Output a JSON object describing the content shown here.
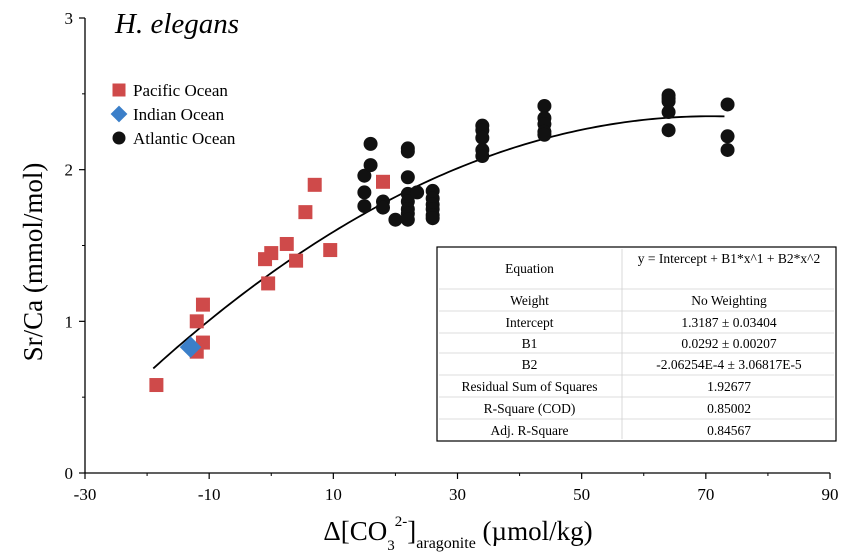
{
  "chart_data": {
    "type": "scatter",
    "title": "H. elegans",
    "xlabel": {
      "prefix": "Δ[CO",
      "sub": "3",
      "sup": "2-",
      "close": "]",
      "sub2": "aragonite",
      "unit": " (µmol/kg)"
    },
    "ylabel": "Sr/Ca (mmol/mol)",
    "xlim": [
      -30,
      90
    ],
    "ylim": [
      0,
      3
    ],
    "x_ticks": [
      "-30",
      "-10",
      "10",
      "30",
      "50",
      "70",
      "90"
    ],
    "y_ticks": [
      "0",
      "1",
      "2",
      "3"
    ],
    "grid": false,
    "legend_position": "top-left",
    "series": [
      {
        "name": "Pacific Ocean",
        "marker": "square",
        "color": "#cf4a4a",
        "points": [
          [
            -18.5,
            0.58
          ],
          [
            -12,
            1.0
          ],
          [
            -12,
            0.8
          ],
          [
            -11,
            1.11
          ],
          [
            -11,
            0.86
          ],
          [
            -1,
            1.41
          ],
          [
            -0.5,
            1.25
          ],
          [
            0,
            1.45
          ],
          [
            2.5,
            1.51
          ],
          [
            4,
            1.4
          ],
          [
            5.5,
            1.72
          ],
          [
            7,
            1.9
          ],
          [
            9.5,
            1.47
          ],
          [
            18,
            1.92
          ]
        ]
      },
      {
        "name": "Indian Ocean",
        "marker": "diamond",
        "color": "#3b7fc9",
        "points": [
          [
            -13,
            0.83
          ]
        ]
      },
      {
        "name": "Atlantic Ocean",
        "marker": "circle",
        "color": "#111111",
        "points": [
          [
            15,
            1.96
          ],
          [
            15,
            1.85
          ],
          [
            15,
            1.76
          ],
          [
            16,
            2.17
          ],
          [
            16,
            2.03
          ],
          [
            18,
            1.79
          ],
          [
            18,
            1.75
          ],
          [
            20,
            1.67
          ],
          [
            22,
            2.14
          ],
          [
            22,
            2.12
          ],
          [
            22,
            1.95
          ],
          [
            22,
            1.84
          ],
          [
            22,
            1.79
          ],
          [
            22,
            1.74
          ],
          [
            22,
            1.71
          ],
          [
            22,
            1.67
          ],
          [
            23.5,
            1.85
          ],
          [
            26,
            1.86
          ],
          [
            26,
            1.81
          ],
          [
            26,
            1.77
          ],
          [
            26,
            1.74
          ],
          [
            26,
            1.7
          ],
          [
            26,
            1.68
          ],
          [
            34,
            2.29
          ],
          [
            34,
            2.26
          ],
          [
            34,
            2.21
          ],
          [
            34,
            2.13
          ],
          [
            34,
            2.09
          ],
          [
            44,
            2.42
          ],
          [
            44,
            2.34
          ],
          [
            44,
            2.3
          ],
          [
            44,
            2.25
          ],
          [
            44,
            2.23
          ],
          [
            64,
            2.49
          ],
          [
            64,
            2.47
          ],
          [
            64,
            2.45
          ],
          [
            64,
            2.38
          ],
          [
            64,
            2.26
          ],
          [
            73.5,
            2.43
          ],
          [
            73.5,
            2.22
          ],
          [
            73.5,
            2.13
          ]
        ]
      }
    ],
    "fit": {
      "type": "polynomial",
      "intercept": 1.3187,
      "b1": 0.0292,
      "b2": -0.000206254,
      "x_range": [
        -19,
        73
      ]
    },
    "stats_table": {
      "rows": [
        {
          "label": "Equation",
          "value": "y = Intercept + B1*x^1 + B2*x^2"
        },
        {
          "label": "Weight",
          "value": "No Weighting"
        },
        {
          "label": "Intercept",
          "value": "1.3187 ± 0.03404"
        },
        {
          "label": "B1",
          "value": "0.0292 ± 0.00207"
        },
        {
          "label": "B2",
          "value": "-2.06254E-4 ± 3.06817E-5"
        },
        {
          "label": "Residual Sum of Squares",
          "value": "1.92677"
        },
        {
          "label": "R-Square (COD)",
          "value": "0.85002"
        },
        {
          "label": "Adj. R-Square",
          "value": "0.84567"
        }
      ]
    }
  }
}
